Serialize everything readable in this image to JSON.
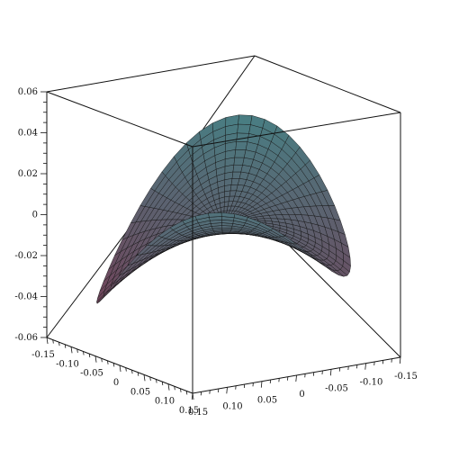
{
  "chart_data": {
    "type": "surface3d",
    "title": "",
    "surface": {
      "description_type": "polar_parametric",
      "radius_range": [
        0,
        0.15
      ],
      "theta_range": [
        -3.14159,
        3.14159
      ],
      "grid": {
        "radial_lines": 18,
        "theta_lines": 60
      },
      "z_function": "r*cos(theta)*sin(theta)+z_curl",
      "color_low": "#7a3550",
      "color_high": "#3d8f8f"
    },
    "axes": {
      "x": {
        "range": [
          -0.15,
          0.15
        ],
        "ticks": [
          "-0.15",
          "-0.10",
          "-0.05",
          "0",
          "0.05",
          "0.10",
          "0.15"
        ]
      },
      "y": {
        "range": [
          -0.15,
          0.15
        ],
        "ticks": [
          "0.15",
          "0.10",
          "0.05",
          "0",
          "-0.05",
          "-0.10",
          "-0.15"
        ]
      },
      "z": {
        "range": [
          -0.06,
          0.06
        ],
        "ticks": [
          "0.06",
          "0.04",
          "0.02",
          "0",
          "-0.02",
          "-0.04",
          "-0.06"
        ]
      }
    },
    "box": true,
    "grid": false,
    "legend": "none"
  }
}
